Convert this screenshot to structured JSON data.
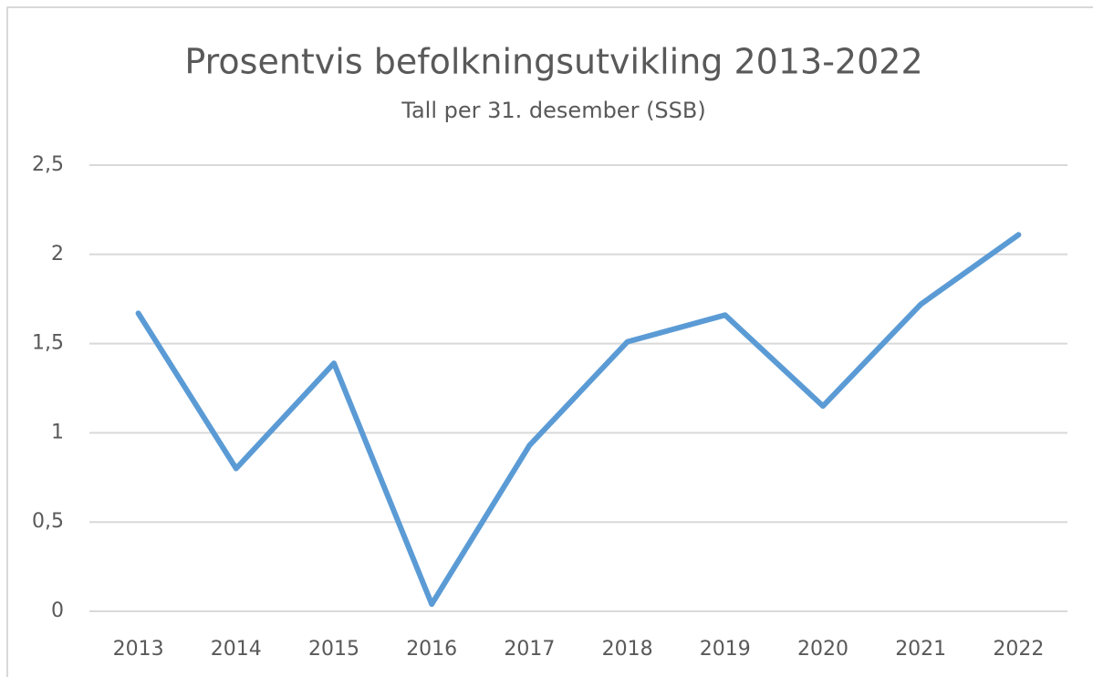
{
  "chart_data": {
    "type": "line",
    "title": "Prosentvis befolkningsutvikling 2013-2022",
    "subtitle": "Tall per 31. desember (SSB)",
    "categories": [
      "2013",
      "2014",
      "2015",
      "2016",
      "2017",
      "2018",
      "2019",
      "2020",
      "2021",
      "2022"
    ],
    "series": [
      {
        "name": "Prosentvis befolkningsutvikling",
        "color": "#5b9bd5",
        "values": [
          1.67,
          0.8,
          1.39,
          0.04,
          0.93,
          1.51,
          1.66,
          1.15,
          1.72,
          2.11
        ]
      }
    ],
    "ylim": [
      0,
      2.5
    ],
    "yticks": [
      0,
      {
        "value": 0.5,
        "label": "0,5"
      },
      1,
      {
        "value": 1.5,
        "label": "1,5"
      },
      2,
      {
        "value": 2.5,
        "label": "2,5"
      }
    ],
    "grid": true
  }
}
